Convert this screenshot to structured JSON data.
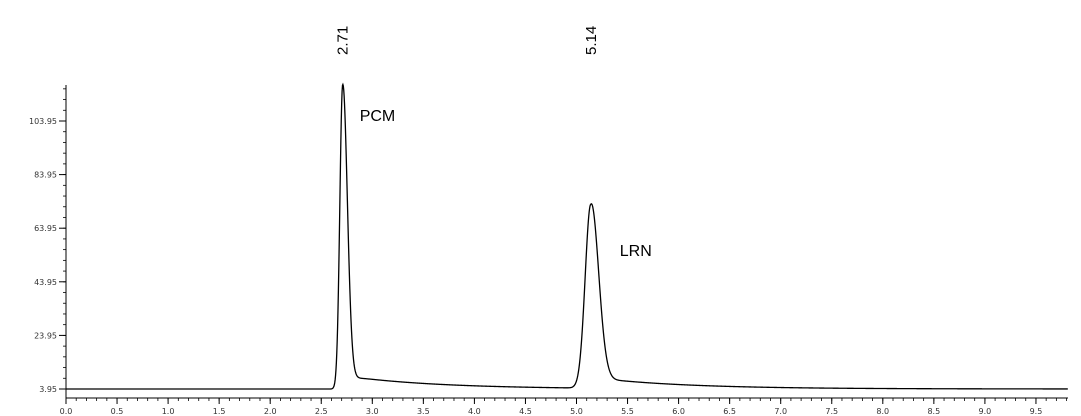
{
  "chart_data": {
    "type": "line",
    "title": "",
    "xlabel": "",
    "ylabel": "",
    "xlim": [
      0.0,
      9.8
    ],
    "ylim": [
      0.0,
      120.0
    ],
    "x_ticks": [
      0.0,
      0.5,
      1.0,
      1.5,
      2.0,
      2.5,
      3.0,
      3.5,
      4.0,
      4.5,
      5.0,
      5.5,
      6.0,
      6.5,
      7.0,
      7.5,
      8.0,
      8.5,
      9.0,
      9.5
    ],
    "x_tick_labels": [
      "0.0",
      "0.5",
      "1.0",
      "1.5",
      "2.0",
      "2.5",
      "3.0",
      "3.5",
      "4.0",
      "4.5",
      "5.0",
      "5.5",
      "6.0",
      "6.5",
      "7.0",
      "7.5",
      "8.0",
      "8.5",
      "9.0",
      "9.5"
    ],
    "y_ticks": [
      3.95,
      23.95,
      43.95,
      63.95,
      83.95,
      103.95
    ],
    "y_tick_labels": [
      "3.95",
      "23.95",
      "43.95",
      "63.95",
      "83.95",
      "103.95"
    ],
    "grid": false,
    "line_color": "#000000",
    "series": [
      {
        "baseline": 3.95,
        "peaks": [
          {
            "rt": 2.71,
            "height": 117.5,
            "sigma_left": 0.028,
            "sigma_right": 0.045,
            "tail": 5.0
          },
          {
            "rt": 5.14,
            "height": 72.5,
            "sigma_left": 0.055,
            "sigma_right": 0.075,
            "tail": 4.0
          }
        ]
      }
    ],
    "annotations": [
      {
        "rt_label": "2.71",
        "name": "PCM",
        "x": 2.71
      },
      {
        "rt_label": "5.14",
        "name": "LRN",
        "x": 5.14
      }
    ]
  }
}
